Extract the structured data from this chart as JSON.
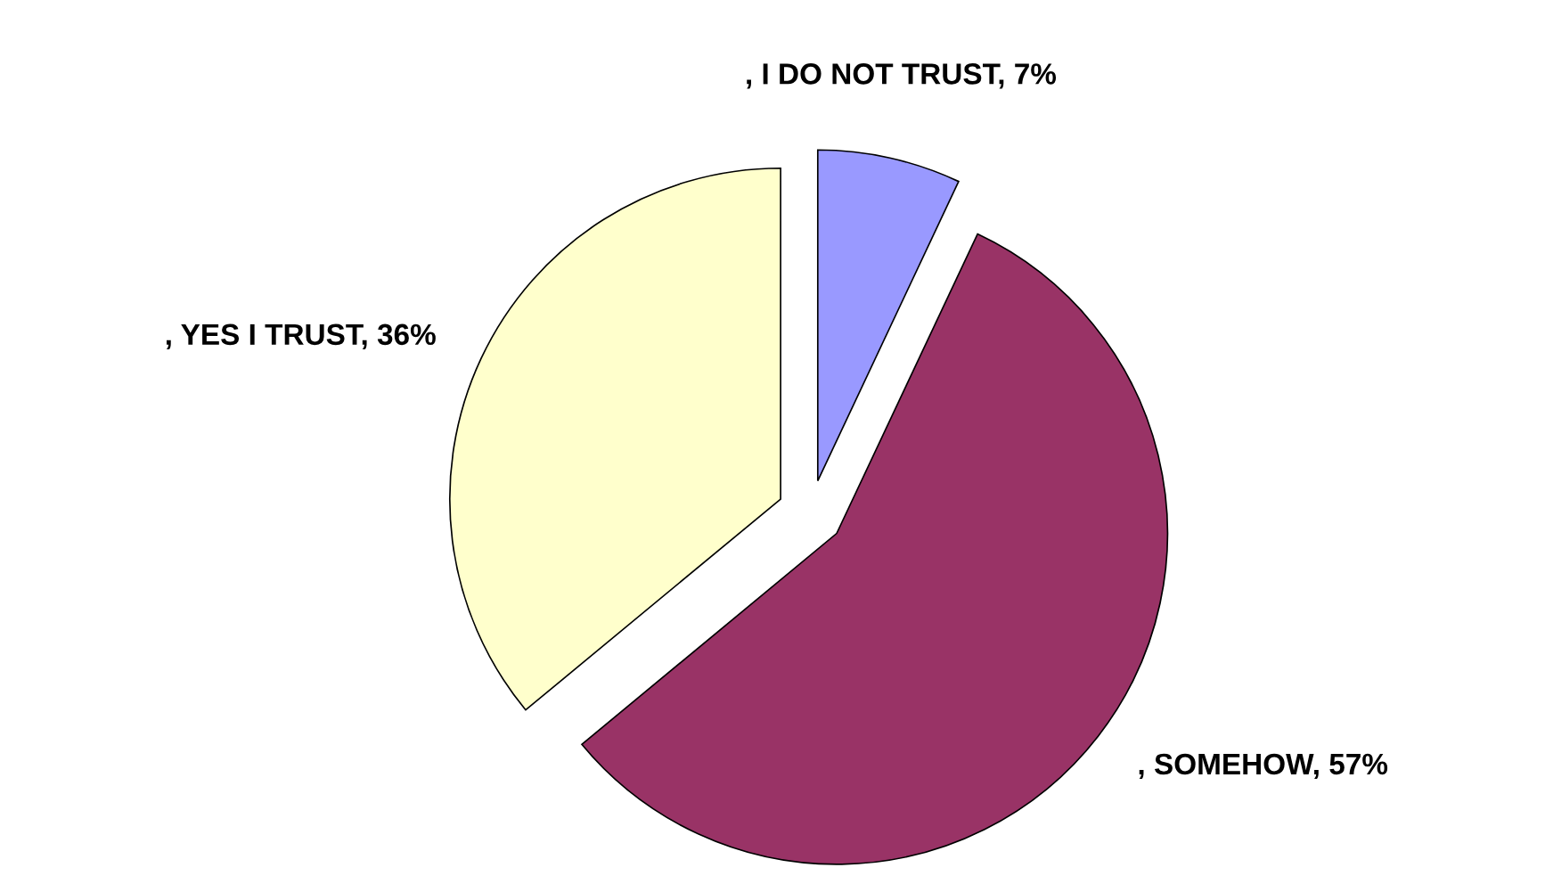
{
  "chart_data": {
    "type": "pie",
    "categories": [
      ", I DO NOT TRUST",
      ", SOMEHOW",
      ", YES I TRUST"
    ],
    "values": [
      7,
      57,
      36
    ],
    "value_labels": [
      "7%",
      "57%",
      "36%"
    ],
    "colors": [
      "#9999ff",
      "#993366",
      "#ffffcc"
    ],
    "legend": false
  }
}
